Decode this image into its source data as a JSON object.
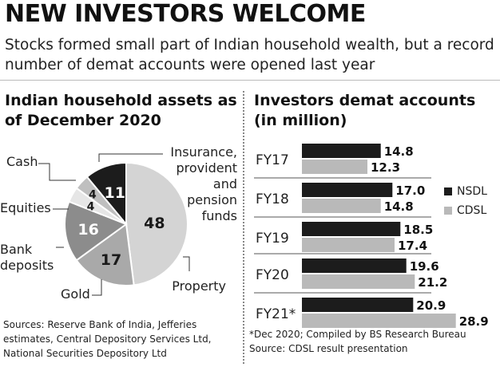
{
  "headline": "NEW INVESTORS WELCOME",
  "deck": "Stocks formed small part of Indian household wealth, but a record number of demat accounts were opened last year",
  "left_title": "Indian household assets as of December 2020",
  "right_title": "Investors demat accounts (in million)",
  "colors": {
    "nsdl": "#1c1c1c",
    "cdsl": "#b9b9b9",
    "property": "#d4d4d4",
    "gold": "#a9a9a9",
    "bank_deposits": "#8c8c8c",
    "equities": "#e6e6e6",
    "cash": "#bfbfbf",
    "insurance": "#1c1c1c"
  },
  "sources_left": [
    "Sources: Reserve Bank of India, Jefferies",
    "estimates, Central Depository Services Ltd,",
    "National Securities Depository Ltd"
  ],
  "sources_right": [
    "*Dec 2020; Compiled by BS Research Bureau",
    "Source: CDSL result presentation"
  ],
  "chart_data": [
    {
      "type": "pie",
      "title": "Indian household assets as of December 2020",
      "slices": [
        {
          "label": "Property",
          "value": 48
        },
        {
          "label": "Gold",
          "value": 17
        },
        {
          "label": "Bank deposits",
          "value": 16
        },
        {
          "label": "Equities",
          "value": 4
        },
        {
          "label": "Cash",
          "value": 4
        },
        {
          "label": "Insurance, provident and pension funds",
          "value": 11
        }
      ]
    },
    {
      "type": "bar",
      "orientation": "horizontal",
      "title": "Investors demat accounts (in million)",
      "categories": [
        "FY17",
        "FY18",
        "FY19",
        "FY20",
        "FY21*"
      ],
      "series": [
        {
          "name": "NSDL",
          "values": [
            14.8,
            17.0,
            18.5,
            19.6,
            20.9
          ]
        },
        {
          "name": "CDSL",
          "values": [
            12.3,
            14.8,
            17.4,
            21.2,
            28.9
          ]
        }
      ],
      "value_labels": {
        "NSDL": [
          "14.8",
          "17.0",
          "18.5",
          "19.6",
          "20.9"
        ],
        "CDSL": [
          "12.3",
          "14.8",
          "17.4",
          "21.2",
          "28.9"
        ]
      },
      "xlim": [
        0,
        30
      ],
      "legend": "right"
    }
  ]
}
